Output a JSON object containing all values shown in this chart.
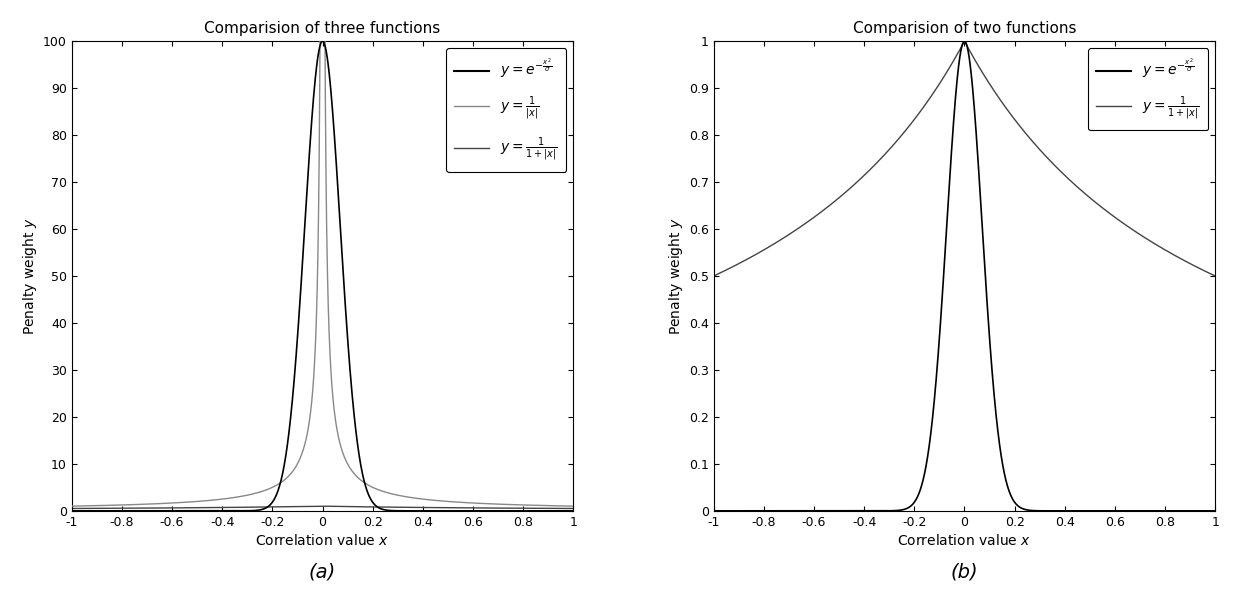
{
  "title_left": "Comparision of three functions",
  "title_right": "Comparision of two functions",
  "xlabel": "Correlation value ",
  "ylabel": "Penalty weight ",
  "xlim": [
    -1,
    1
  ],
  "ylim_left": [
    0,
    100
  ],
  "ylim_right": [
    0,
    1
  ],
  "sigma": 0.01,
  "xticks": [
    -1,
    -0.8,
    -0.6,
    -0.4,
    -0.2,
    0,
    0.2,
    0.4,
    0.6,
    0.8,
    1
  ],
  "yticks_left": [
    0,
    10,
    20,
    30,
    40,
    50,
    60,
    70,
    80,
    90,
    100
  ],
  "yticks_right": [
    0,
    0.1,
    0.2,
    0.3,
    0.4,
    0.5,
    0.6,
    0.7,
    0.8,
    0.9,
    1.0
  ],
  "line1_color": "#000000",
  "line2_color": "#888888",
  "line3_color": "#444444",
  "bg_color": "#ffffff",
  "subplot_label_a": "(a)",
  "subplot_label_b": "(b)"
}
